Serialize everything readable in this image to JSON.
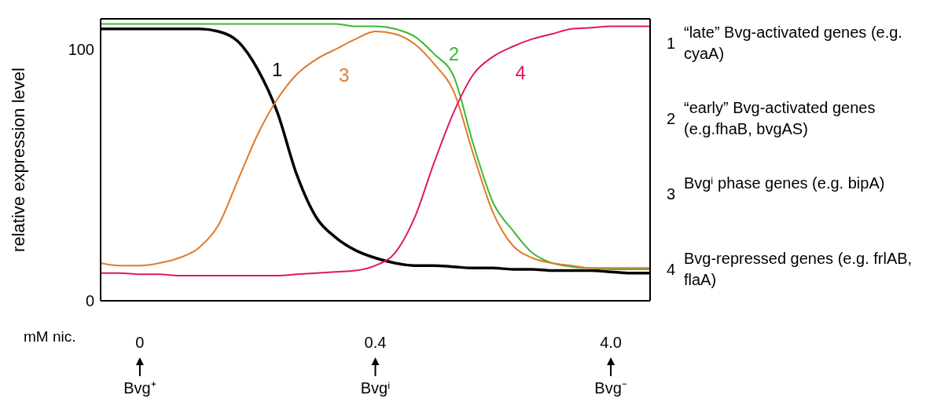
{
  "chart_data": {
    "type": "line",
    "ylabel": "relative expression level",
    "xlabel": "mM nic.",
    "categories": [
      null,
      null,
      "0",
      null,
      null,
      null,
      null,
      null,
      null,
      null,
      null,
      null,
      null,
      null,
      "0.4",
      null,
      null,
      null,
      null,
      null,
      null,
      null,
      null,
      null,
      null,
      null,
      "4.0",
      null,
      null
    ],
    "ylim": [
      0,
      112
    ],
    "yticks": [
      0,
      100
    ],
    "marker": "none",
    "series": [
      {
        "name": "1",
        "color": "#000000",
        "values": [
          108,
          108,
          108,
          108,
          108,
          108,
          107,
          103,
          92,
          75,
          50,
          33,
          25,
          20,
          17,
          15,
          14,
          14,
          13.5,
          13,
          13,
          12.5,
          12.5,
          12,
          12,
          12,
          11.5,
          11,
          11
        ]
      },
      {
        "name": "2",
        "color": "#3cb832",
        "values": [
          110,
          110,
          110,
          110,
          110,
          110,
          110,
          110,
          110,
          110,
          110,
          110,
          110,
          109,
          109,
          108,
          105,
          98,
          89,
          62,
          39,
          28,
          19,
          15,
          13.5,
          13,
          12.5,
          12.5,
          12.5
        ]
      },
      {
        "name": "3",
        "color": "#e07a2a",
        "values": [
          15,
          14,
          14,
          15,
          17,
          21,
          30,
          48,
          66,
          80,
          90,
          96,
          100,
          104,
          107,
          106,
          102,
          94,
          83,
          58,
          35,
          22,
          17,
          15,
          14,
          13,
          13,
          13,
          13
        ]
      },
      {
        "name": "4",
        "color": "#e0185e",
        "values": [
          11,
          11,
          10.5,
          10.5,
          10,
          10,
          10,
          10,
          10,
          10,
          10.5,
          11,
          11.5,
          12,
          14,
          19,
          33,
          55,
          75,
          90,
          97,
          101,
          104,
          106,
          108,
          108.5,
          109,
          109,
          109
        ]
      }
    ],
    "annotations": [
      "“late” Bvg-activated genes (e.g. cyaA)",
      "“early” Bvg-activated genes (e.g.fhaB, bvgAS)",
      "Bvgⁱ phase genes (e.g. bipA)",
      "Bvg-repressed genes (e.g. frlAB, flaA)",
      "Bvg⁺",
      "Bvgⁱ",
      "Bvg⁻"
    ]
  }
}
